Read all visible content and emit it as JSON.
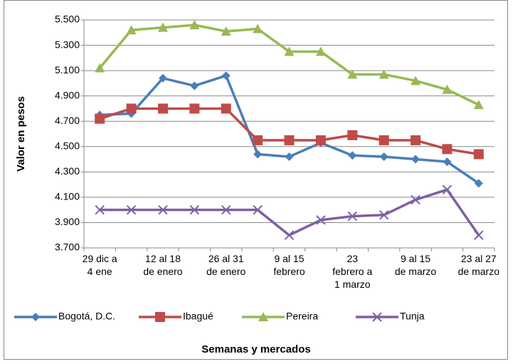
{
  "chart_data": {
    "type": "line",
    "y_label": "Valor en pesos",
    "x_label": "Semanas y mercados",
    "categories": [
      "29 dic a 4 ene",
      null,
      "12 al 18 de enero",
      null,
      "26 al 31 de enero",
      null,
      "9 al 15 febrero",
      null,
      "23 febrero a 1 marzo",
      null,
      "9 al 15 de marzo",
      null,
      "23 al 27 de marzo"
    ],
    "series": [
      {
        "name": "Bogotá, D.C.",
        "color": "#4a7ebb",
        "marker": "diamond",
        "values": [
          4750,
          4760,
          5040,
          4980,
          5060,
          4440,
          4420,
          4530,
          4430,
          4420,
          4400,
          4380,
          4210
        ]
      },
      {
        "name": "Ibagué",
        "color": "#be4b48",
        "marker": "square",
        "values": [
          4720,
          4800,
          4800,
          4800,
          4800,
          4550,
          4550,
          4550,
          4590,
          4550,
          4550,
          4480,
          4440
        ]
      },
      {
        "name": "Pereira",
        "color": "#98b954",
        "marker": "triangle",
        "values": [
          5120,
          5420,
          5440,
          5460,
          5410,
          5430,
          5250,
          5250,
          5070,
          5070,
          5020,
          4950,
          4830
        ]
      },
      {
        "name": "Tunja",
        "color": "#7d60a0",
        "marker": "x",
        "values": [
          4000,
          4000,
          4000,
          4000,
          4000,
          4000,
          3800,
          3920,
          3950,
          3960,
          4080,
          4160,
          3800
        ]
      }
    ],
    "ylim": [
      3700,
      5500
    ],
    "yticks": [
      {
        "value": 3700,
        "label": "3.700"
      },
      {
        "value": 3900,
        "label": "3.900"
      },
      {
        "value": 4100,
        "label": "4.100"
      },
      {
        "value": 4300,
        "label": "4.300"
      },
      {
        "value": 4500,
        "label": "4.500"
      },
      {
        "value": 4700,
        "label": "4.700"
      },
      {
        "value": 4900,
        "label": "4.900"
      },
      {
        "value": 5100,
        "label": "5.100"
      },
      {
        "value": 5300,
        "label": "5.300"
      },
      {
        "value": 5500,
        "label": "5.500"
      }
    ],
    "grid": true,
    "legend": "bottom"
  }
}
